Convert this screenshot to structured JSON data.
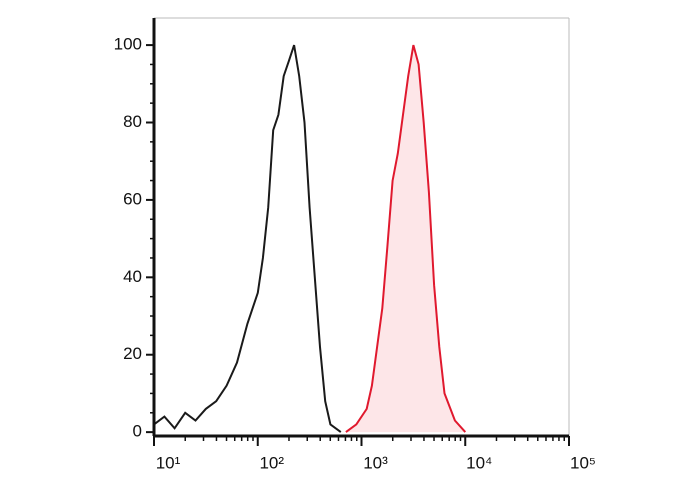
{
  "chart_data": {
    "type": "histogram-overlay",
    "xscale": "log",
    "xlim": [
      10,
      100000
    ],
    "ylim": [
      -1,
      107
    ],
    "xticks": [
      {
        "value": 10,
        "label": "10¹"
      },
      {
        "value": 100,
        "label": "10²"
      },
      {
        "value": 1000,
        "label": "10³"
      },
      {
        "value": 10000,
        "label": "10⁴"
      },
      {
        "value": 100000,
        "label": "10⁵"
      }
    ],
    "yticks": [
      0,
      20,
      40,
      60,
      80,
      100
    ],
    "series": [
      {
        "color": "#1a1a1a",
        "fill": "none",
        "x": [
          10,
          12.6,
          15.8,
          20,
          25.1,
          31.6,
          39.8,
          50.1,
          63.1,
          79.4,
          100,
          112,
          126,
          141,
          158,
          178,
          200,
          224,
          251,
          282,
          316,
          355,
          398,
          447,
          501,
          631
        ],
        "values": [
          2,
          4,
          1,
          5,
          3,
          6,
          8,
          12,
          18,
          28,
          36,
          45,
          58,
          78,
          82,
          92,
          96,
          100,
          92,
          80,
          58,
          40,
          22,
          8,
          2,
          0
        ]
      },
      {
        "color": "#e0192e",
        "fill": "#fde6e8",
        "x": [
          708,
          891,
          1122,
          1259,
          1413,
          1585,
          1778,
          1995,
          2239,
          2512,
          2818,
          3162,
          3548,
          3981,
          4467,
          5012,
          5623,
          6310,
          7943,
          10000
        ],
        "values": [
          0,
          2,
          6,
          12,
          22,
          32,
          48,
          65,
          72,
          82,
          92,
          100,
          95,
          80,
          62,
          38,
          22,
          10,
          3,
          0
        ]
      }
    ]
  }
}
